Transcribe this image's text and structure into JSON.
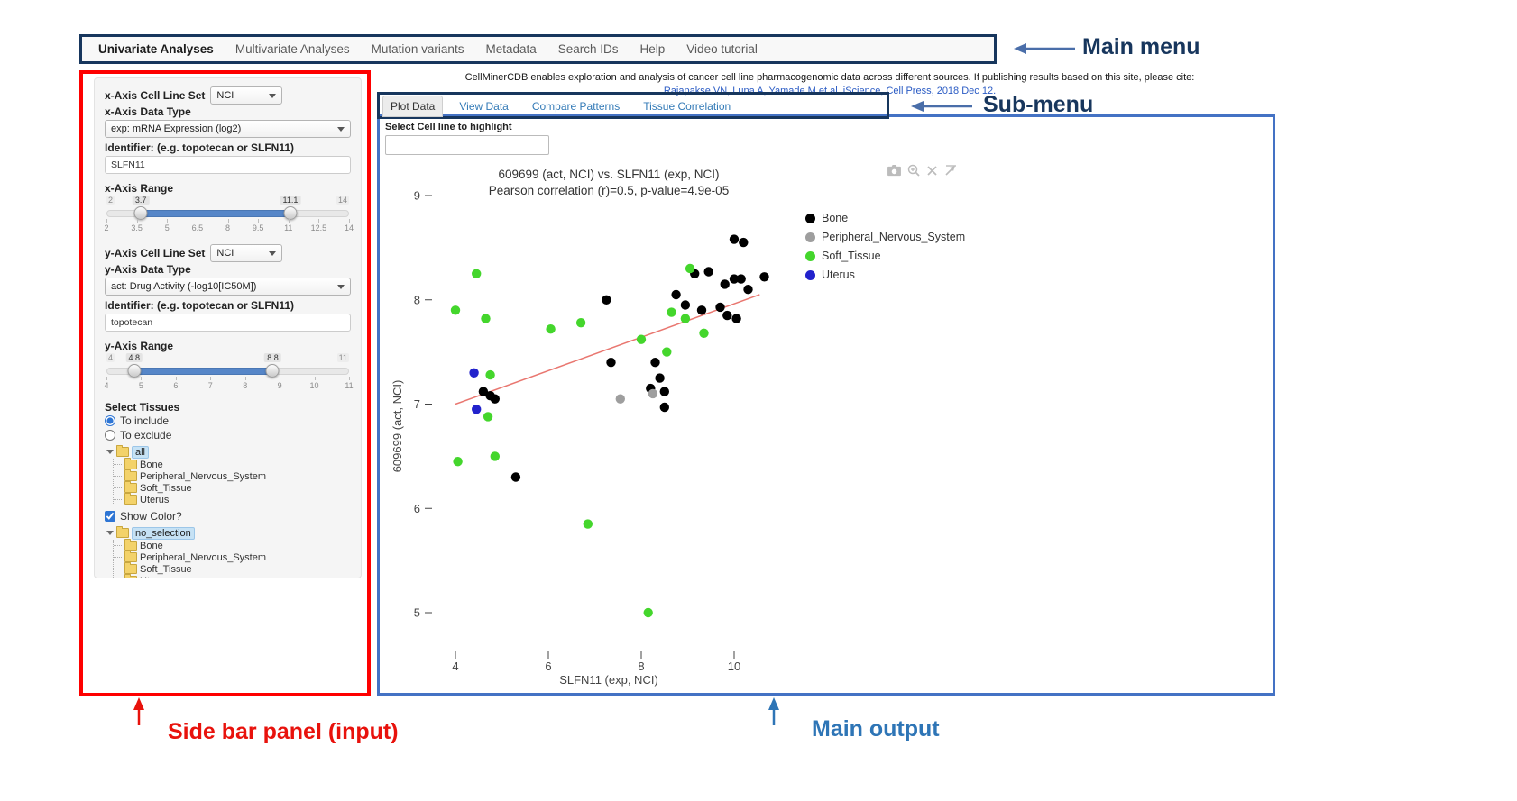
{
  "main_menu": {
    "items": [
      "Univariate Analyses",
      "Multivariate Analyses",
      "Mutation variants",
      "Metadata",
      "Search IDs",
      "Help",
      "Video tutorial"
    ],
    "active": "Univariate Analyses"
  },
  "header": {
    "cite_text": "CellMinerCDB enables exploration and analysis of cancer cell line pharmacogenomic data across different sources. If publishing results based on this site, please cite:",
    "cite_link": "Rajapakse VN, Luna A, Yamade M et al. iScience, Cell Press, 2018 Dec 12."
  },
  "submenu": {
    "tabs": [
      "Plot Data",
      "View Data",
      "Compare Patterns",
      "Tissue Correlation"
    ],
    "active": "Plot Data"
  },
  "annotations": {
    "main_menu": "Main menu",
    "sub_menu": "Sub-menu",
    "sidebar": "Side bar panel (input)",
    "main_output": "Main output",
    "colors": {
      "navy": "#17365d",
      "red": "#e8120c",
      "blue": "#2e75b6"
    }
  },
  "sidebar": {
    "x_axis": {
      "cell_line_set_label": "x-Axis Cell Line Set",
      "cell_line_set_value": "NCI",
      "data_type_label": "x-Axis Data Type",
      "data_type_value": "exp: mRNA Expression (log2)",
      "identifier_label": "Identifier: (e.g. topotecan or SLFN11)",
      "identifier_value": "SLFN11",
      "range_label": "x-Axis Range",
      "range": {
        "min": 2,
        "max": 14,
        "from": 3.7,
        "to": 11.1,
        "ticks": [
          "2",
          "3.5",
          "5",
          "6.5",
          "8",
          "9.5",
          "11",
          "12.5",
          "14"
        ]
      }
    },
    "y_axis": {
      "cell_line_set_label": "y-Axis Cell Line Set",
      "cell_line_set_value": "NCI",
      "data_type_label": "y-Axis Data Type",
      "data_type_value": "act: Drug Activity (-log10[IC50M])",
      "identifier_label": "Identifier: (e.g. topotecan or SLFN11)",
      "identifier_value": "topotecan",
      "range_label": "y-Axis Range",
      "range": {
        "min": 4,
        "max": 11,
        "from": 4.8,
        "to": 8.8,
        "ticks": [
          "4",
          "5",
          "6",
          "7",
          "8",
          "9",
          "10",
          "11"
        ]
      }
    },
    "tissues": {
      "section_label": "Select Tissues",
      "include_label": "To include",
      "exclude_label": "To exclude",
      "include_selected": true,
      "tree_include": {
        "root": "all",
        "children": [
          "Bone",
          "Peripheral_Nervous_System",
          "Soft_Tissue",
          "Uterus"
        ]
      },
      "show_color_label": "Show Color?",
      "show_color_checked": true,
      "tree_color": {
        "root": "no_selection",
        "children": [
          "Bone",
          "Peripheral_Nervous_System",
          "Soft_Tissue",
          "Uterus"
        ]
      }
    }
  },
  "main_output": {
    "highlight_label": "Select Cell line to highlight",
    "highlight_value": "",
    "modebar_icons": [
      "camera-icon",
      "zoom-in-icon",
      "cross-icon",
      "expand-arrow-icon"
    ]
  },
  "chart_data": {
    "type": "scatter",
    "title": "609699 (act, NCI) vs. SLFN11 (exp, NCI)",
    "subtitle": "Pearson correlation (r)=0.5, p-value=4.9e-05",
    "xlabel": "SLFN11 (exp, NCI)",
    "ylabel": "609699 (act, NCI)",
    "xlim": [
      3.4,
      11.0
    ],
    "ylim": [
      4.55,
      9.3
    ],
    "xticks": [
      4,
      6,
      8,
      10
    ],
    "yticks": [
      5,
      6,
      7,
      8,
      9
    ],
    "grid": false,
    "legend_position": "right",
    "trendline": {
      "x1": 4.0,
      "y1": 7.0,
      "x2": 10.55,
      "y2": 8.05,
      "color": "#e97770"
    },
    "series": [
      {
        "name": "Bone",
        "color": "#000000",
        "points": [
          [
            10.0,
            8.58
          ],
          [
            10.2,
            8.55
          ],
          [
            7.25,
            8.0
          ],
          [
            8.75,
            8.05
          ],
          [
            8.95,
            7.95
          ],
          [
            9.15,
            8.25
          ],
          [
            9.45,
            8.27
          ],
          [
            9.3,
            7.9
          ],
          [
            9.7,
            7.93
          ],
          [
            9.85,
            7.85
          ],
          [
            10.05,
            7.82
          ],
          [
            9.8,
            8.15
          ],
          [
            10.0,
            8.2
          ],
          [
            10.15,
            8.2
          ],
          [
            10.3,
            8.1
          ],
          [
            10.65,
            8.22
          ],
          [
            7.35,
            7.4
          ],
          [
            8.3,
            7.4
          ],
          [
            8.4,
            7.25
          ],
          [
            8.2,
            7.15
          ],
          [
            8.5,
            7.12
          ],
          [
            8.5,
            6.97
          ],
          [
            4.6,
            7.12
          ],
          [
            4.75,
            7.08
          ],
          [
            4.85,
            7.05
          ],
          [
            5.3,
            6.3
          ]
        ]
      },
      {
        "name": "Peripheral_Nervous_System",
        "color": "#9e9e9e",
        "points": [
          [
            7.55,
            7.05
          ],
          [
            8.25,
            7.1
          ]
        ]
      },
      {
        "name": "Soft_Tissue",
        "color": "#44d62c",
        "points": [
          [
            4.45,
            8.25
          ],
          [
            4.0,
            7.9
          ],
          [
            4.65,
            7.82
          ],
          [
            6.05,
            7.72
          ],
          [
            6.7,
            7.78
          ],
          [
            9.05,
            8.3
          ],
          [
            8.65,
            7.88
          ],
          [
            8.95,
            7.82
          ],
          [
            9.35,
            7.68
          ],
          [
            8.0,
            7.62
          ],
          [
            8.55,
            7.5
          ],
          [
            4.75,
            7.28
          ],
          [
            4.7,
            6.88
          ],
          [
            4.05,
            6.45
          ],
          [
            4.85,
            6.5
          ],
          [
            6.85,
            5.85
          ],
          [
            8.15,
            5.0
          ]
        ]
      },
      {
        "name": "Uterus",
        "color": "#2222cc",
        "points": [
          [
            4.4,
            7.3
          ],
          [
            4.45,
            6.95
          ]
        ]
      }
    ]
  }
}
